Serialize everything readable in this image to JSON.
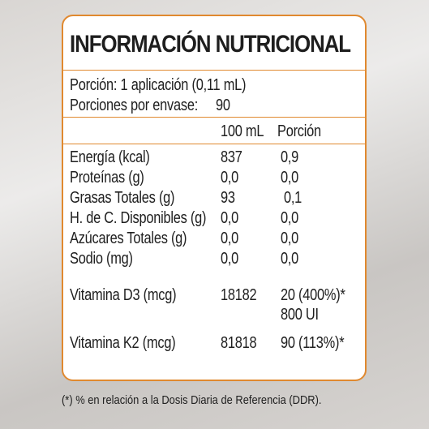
{
  "title": "INFORMACIÓN NUTRICIONAL",
  "serving": {
    "portion": "Porción: 1 aplicación (0,11 mL)",
    "portions_per_container_label": "Porciones por envase:",
    "portions_per_container_value": "90"
  },
  "columns": {
    "per100": "100 mL",
    "per_portion": "Porción"
  },
  "rows": [
    {
      "label": "Energía (kcal)",
      "per100": "837",
      "portion": "0,9"
    },
    {
      "label": "Proteínas (g)",
      "per100": "0,0",
      "portion": "0,0"
    },
    {
      "label": "Grasas Totales (g)",
      "per100": "93",
      "portion": "0,1"
    },
    {
      "label": "H. de C. Disponibles (g)",
      "per100": "0,0",
      "portion": "0,0"
    },
    {
      "label": "Azúcares Totales (g)",
      "per100": "0,0",
      "portion": "0,0"
    },
    {
      "label": "Sodio (mg)",
      "per100": "0,0",
      "portion": "0,0"
    }
  ],
  "vitamins": [
    {
      "label": "Vitamina D3 (mcg)",
      "per100": "18182",
      "portion": "20 (400%)*",
      "portion_extra": "800 UI"
    },
    {
      "label": "Vitamina K2 (mcg)",
      "per100": "81818",
      "portion": "90 (113%)*"
    }
  ],
  "footnote": "(*) % en relación a la Dosis Diaria de Referencia (DDR).",
  "colors": {
    "border": "#e0892f",
    "text": "#1f1f1f"
  }
}
